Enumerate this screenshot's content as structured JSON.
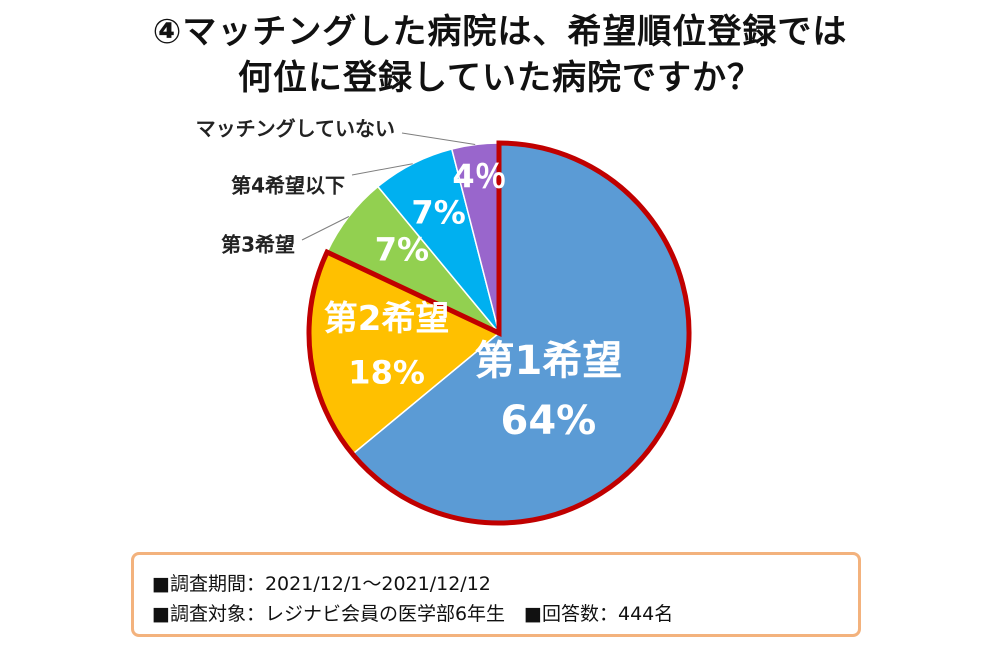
{
  "title_line1": "④マッチングした病院は、希望順位登録では",
  "title_line2": "何位に登録していた病院ですか？",
  "chart_data": {
    "type": "pie",
    "title": "④マッチングした病院は、希望順位登録では何位に登録していた病院ですか？",
    "slices": [
      {
        "name": "第1希望",
        "value": 64,
        "label": "64%",
        "color": "#5b9bd5",
        "highlight": true
      },
      {
        "name": "第2希望",
        "value": 18,
        "label": "18%",
        "color": "#ffc000",
        "highlight": true
      },
      {
        "name": "第3希望",
        "value": 7,
        "label": "7%",
        "color": "#92d050",
        "highlight": false
      },
      {
        "name": "第4希望以下",
        "value": 7,
        "label": "7%",
        "color": "#00b0f0",
        "highlight": false
      },
      {
        "name": "マッチングしていない",
        "value": 4,
        "label": "4％",
        "color": "#9966cc",
        "highlight": false
      }
    ],
    "highlight_border_color": "#c00000"
  },
  "note": {
    "line1": "■調査期間：2021/12/1〜2021/12/12",
    "line2": "■調査対象：レジナビ会員の医学部6年生　■回答数：444名"
  }
}
